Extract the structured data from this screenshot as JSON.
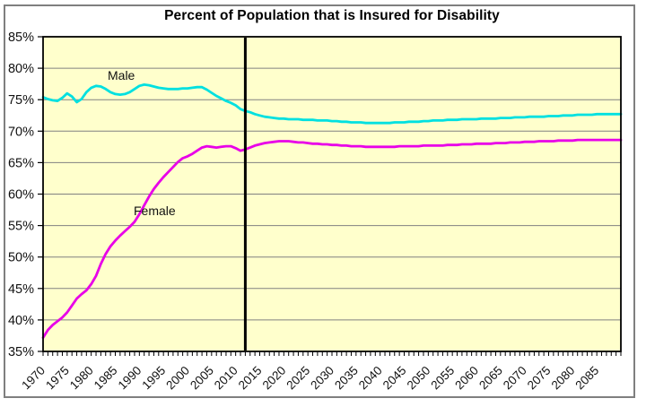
{
  "chart_data": {
    "type": "line",
    "title": "Percent of Population that is Insured for Disability",
    "xlabel": "",
    "ylabel": "",
    "legend": "none",
    "grid": "horizontal",
    "plot_background": "#FFFFCC",
    "gridline_color": "#808080",
    "border_color": "#000000",
    "x_axis": {
      "min": 1970,
      "max": 2090,
      "tick_interval_years": 1,
      "label_interval_years": 5,
      "labels": [
        "1970",
        "1975",
        "1980",
        "1985",
        "1990",
        "1995",
        "2000",
        "2005",
        "2010",
        "2015",
        "2020",
        "2025",
        "2030",
        "2035",
        "2040",
        "2045",
        "2050",
        "2055",
        "2060",
        "2065",
        "2070",
        "2075",
        "2080",
        "2085"
      ]
    },
    "y_axis": {
      "min": 35,
      "max": 85,
      "tick_interval": 5,
      "unit": "%",
      "labels": [
        "35%",
        "40%",
        "45%",
        "50%",
        "55%",
        "60%",
        "65%",
        "70%",
        "75%",
        "80%",
        "85%"
      ]
    },
    "vertical_marker": {
      "year": 2012,
      "color": "#000000"
    },
    "series": [
      {
        "name": "Male",
        "color": "#00E0E0",
        "x_start": 1970,
        "x_step": 1,
        "values": [
          75.4,
          75.1,
          74.9,
          74.8,
          75.3,
          76.0,
          75.5,
          74.6,
          75.1,
          76.2,
          76.9,
          77.2,
          77.1,
          76.7,
          76.2,
          75.9,
          75.8,
          75.9,
          76.2,
          76.7,
          77.2,
          77.4,
          77.3,
          77.1,
          76.9,
          76.8,
          76.7,
          76.7,
          76.7,
          76.8,
          76.8,
          76.9,
          77.0,
          77.0,
          76.6,
          76.1,
          75.6,
          75.2,
          74.8,
          74.5,
          74.1,
          73.5,
          73.2,
          73.0,
          72.7,
          72.5,
          72.3,
          72.2,
          72.1,
          72.0,
          72.0,
          71.9,
          71.9,
          71.9,
          71.8,
          71.8,
          71.8,
          71.7,
          71.7,
          71.7,
          71.6,
          71.6,
          71.5,
          71.5,
          71.4,
          71.4,
          71.4,
          71.3,
          71.3,
          71.3,
          71.3,
          71.3,
          71.3,
          71.4,
          71.4,
          71.4,
          71.5,
          71.5,
          71.5,
          71.6,
          71.6,
          71.7,
          71.7,
          71.7,
          71.8,
          71.8,
          71.8,
          71.9,
          71.9,
          71.9,
          71.9,
          72.0,
          72.0,
          72.0,
          72.0,
          72.1,
          72.1,
          72.1,
          72.2,
          72.2,
          72.2,
          72.3,
          72.3,
          72.3,
          72.3,
          72.4,
          72.4,
          72.4,
          72.5,
          72.5,
          72.5,
          72.6,
          72.6,
          72.6,
          72.6,
          72.7,
          72.7,
          72.7,
          72.7,
          72.7,
          72.7
        ]
      },
      {
        "name": "Female",
        "color": "#E800E8",
        "x_start": 1970,
        "x_step": 1,
        "values": [
          37.2,
          38.4,
          39.2,
          39.8,
          40.4,
          41.2,
          42.3,
          43.4,
          44.1,
          44.7,
          45.7,
          47.0,
          48.9,
          50.5,
          51.7,
          52.6,
          53.4,
          54.1,
          54.8,
          55.6,
          56.8,
          58.2,
          59.6,
          60.8,
          61.8,
          62.7,
          63.5,
          64.3,
          65.1,
          65.7,
          66.0,
          66.4,
          66.9,
          67.4,
          67.6,
          67.5,
          67.4,
          67.5,
          67.6,
          67.6,
          67.3,
          66.9,
          67.1,
          67.4,
          67.7,
          67.9,
          68.1,
          68.2,
          68.3,
          68.4,
          68.4,
          68.4,
          68.3,
          68.2,
          68.2,
          68.1,
          68.0,
          68.0,
          67.9,
          67.9,
          67.8,
          67.8,
          67.7,
          67.7,
          67.6,
          67.6,
          67.6,
          67.5,
          67.5,
          67.5,
          67.5,
          67.5,
          67.5,
          67.5,
          67.6,
          67.6,
          67.6,
          67.6,
          67.6,
          67.7,
          67.7,
          67.7,
          67.7,
          67.7,
          67.8,
          67.8,
          67.8,
          67.9,
          67.9,
          67.9,
          68.0,
          68.0,
          68.0,
          68.0,
          68.1,
          68.1,
          68.1,
          68.2,
          68.2,
          68.2,
          68.3,
          68.3,
          68.3,
          68.4,
          68.4,
          68.4,
          68.4,
          68.5,
          68.5,
          68.5,
          68.5,
          68.6,
          68.6,
          68.6,
          68.6,
          68.6,
          68.6,
          68.6,
          68.6,
          68.6,
          68.6
        ]
      }
    ]
  }
}
